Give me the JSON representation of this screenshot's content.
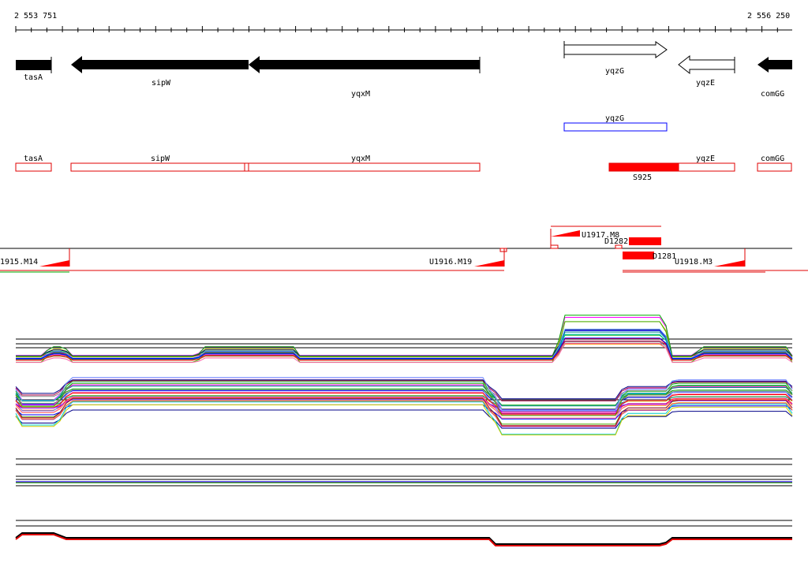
{
  "axis": {
    "start": "2 553 751",
    "end": "2 556 250"
  },
  "genes": [
    "tasA",
    "sipW",
    "yqxM",
    "yqzG",
    "yqzE",
    "comGG"
  ],
  "predicted": [
    "yqzG"
  ],
  "annotated": [
    "tasA",
    "sipW",
    "yqxM",
    "yqzE",
    "comGG",
    "S925"
  ],
  "transcripts": [
    "U1917.M8",
    "D1282",
    "D1281",
    "1915.M14",
    "U1916.M19",
    "U1918.M3"
  ]
}
